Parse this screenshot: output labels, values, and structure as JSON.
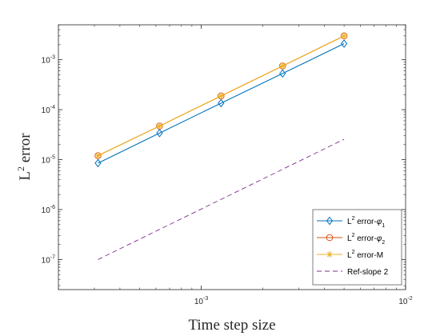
{
  "chart_data": {
    "type": "line",
    "xscale": "log",
    "yscale": "log",
    "xlim": [
      0.0002,
      0.01
    ],
    "ylim": [
      2.5e-08,
      0.005
    ],
    "xlabel": "Time step size",
    "ylabel": {
      "base": "L",
      "sup": "2",
      "rest": " error"
    },
    "x": [
      0.0003125,
      0.000625,
      0.00125,
      0.0025,
      0.005
    ],
    "x_ticks": [
      {
        "value": 0.001,
        "base": "10",
        "exp": "-3"
      },
      {
        "value": 0.01,
        "base": "10",
        "exp": "-2"
      }
    ],
    "y_ticks": [
      {
        "value": 1e-07,
        "base": "10",
        "exp": "-7"
      },
      {
        "value": 1e-06,
        "base": "10",
        "exp": "-6"
      },
      {
        "value": 1e-05,
        "base": "10",
        "exp": "-5"
      },
      {
        "value": 0.0001,
        "base": "10",
        "exp": "-4"
      },
      {
        "value": 0.001,
        "base": "10",
        "exp": "-3"
      }
    ],
    "series": [
      {
        "name": {
          "pre": "L",
          "sup": "2",
          "mid": " error-",
          "greek": "φ",
          "sub": "1"
        },
        "values": [
          8.5e-06,
          3.4e-05,
          0.000135,
          0.00053,
          0.0021
        ],
        "color": "#0072BD",
        "marker": "diamond",
        "dash": "solid"
      },
      {
        "name": {
          "pre": "L",
          "sup": "2",
          "mid": " error-",
          "greek": "φ",
          "sub": "2"
        },
        "values": [
          1.2e-05,
          4.7e-05,
          0.000188,
          0.00075,
          0.003
        ],
        "color": "#D95319",
        "marker": "circle",
        "dash": "solid"
      },
      {
        "name": {
          "pre": "L",
          "sup": "2",
          "mid": " error-M",
          "greek": "",
          "sub": ""
        },
        "values": [
          1.2e-05,
          4.7e-05,
          0.000188,
          0.00075,
          0.003
        ],
        "color": "#EDB120",
        "marker": "asterisk",
        "dash": "solid"
      },
      {
        "name": {
          "pre": "Ref-slope 2",
          "sup": "",
          "mid": "",
          "greek": "",
          "sub": ""
        },
        "values": [
          1e-07,
          4e-07,
          1.6e-06,
          6.4e-06,
          2.56e-05
        ],
        "color": "#7E2F8E",
        "marker": "none",
        "dash": "dashed"
      }
    ],
    "grid": false,
    "legend_position": "bottom-right"
  }
}
